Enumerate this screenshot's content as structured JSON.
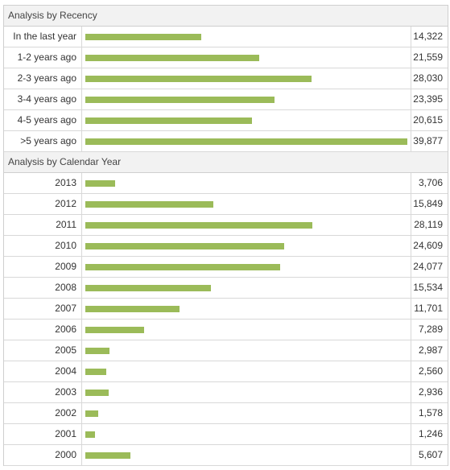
{
  "recency": {
    "title": "Analysis by Recency",
    "rows": [
      {
        "label": "In the last year",
        "value": "14,322",
        "amount": 14322
      },
      {
        "label": "1-2 years ago",
        "value": "21,559",
        "amount": 21559
      },
      {
        "label": "2-3 years ago",
        "value": "28,030",
        "amount": 28030
      },
      {
        "label": "3-4 years ago",
        "value": "23,395",
        "amount": 23395
      },
      {
        "label": "4-5 years ago",
        "value": "20,615",
        "amount": 20615
      },
      {
        "label": ">5 years ago",
        "value": "39,877",
        "amount": 39877
      }
    ]
  },
  "calendar": {
    "title": "Analysis by Calendar Year",
    "rows": [
      {
        "label": "2013",
        "value": "3,706",
        "amount": 3706
      },
      {
        "label": "2012",
        "value": "15,849",
        "amount": 15849
      },
      {
        "label": "2011",
        "value": "28,119",
        "amount": 28119
      },
      {
        "label": "2010",
        "value": "24,609",
        "amount": 24609
      },
      {
        "label": "2009",
        "value": "24,077",
        "amount": 24077
      },
      {
        "label": "2008",
        "value": "15,534",
        "amount": 15534
      },
      {
        "label": "2007",
        "value": "11,701",
        "amount": 11701
      },
      {
        "label": "2006",
        "value": "7,289",
        "amount": 7289
      },
      {
        "label": "2005",
        "value": "2,987",
        "amount": 2987
      },
      {
        "label": "2004",
        "value": "2,560",
        "amount": 2560
      },
      {
        "label": "2003",
        "value": "2,936",
        "amount": 2936
      },
      {
        "label": "2002",
        "value": "1,578",
        "amount": 1578
      },
      {
        "label": "2001",
        "value": "1,246",
        "amount": 1246
      },
      {
        "label": "2000",
        "value": "5,607",
        "amount": 5607
      }
    ]
  },
  "colors": {
    "bar": "#9bbb59",
    "header_bg": "#f2f2f2",
    "border": "#cfcfcf"
  }
}
